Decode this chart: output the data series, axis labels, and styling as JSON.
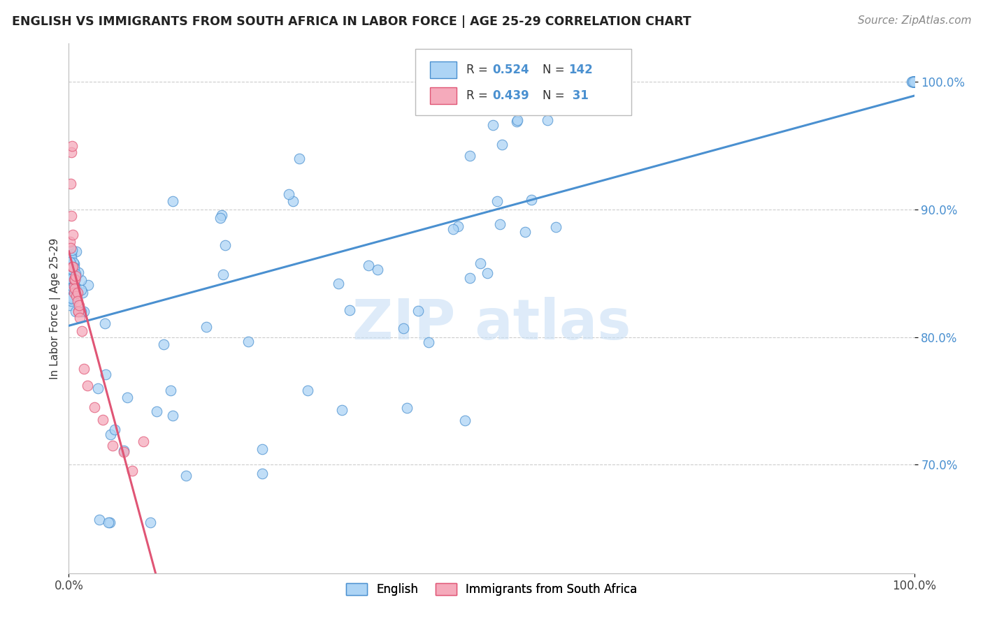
{
  "title": "ENGLISH VS IMMIGRANTS FROM SOUTH AFRICA IN LABOR FORCE | AGE 25-29 CORRELATION CHART",
  "source": "Source: ZipAtlas.com",
  "ylabel": "In Labor Force | Age 25-29",
  "xmin": 0.0,
  "xmax": 1.0,
  "ymin": 0.615,
  "ymax": 1.03,
  "yticks": [
    0.7,
    0.8,
    0.9,
    1.0
  ],
  "ytick_labels": [
    "70.0%",
    "80.0%",
    "90.0%",
    "100.0%"
  ],
  "xtick_labels": [
    "0.0%",
    "100.0%"
  ],
  "legend_r_english": "0.524",
  "legend_n_english": "142",
  "legend_r_immigrants": "0.439",
  "legend_n_immigrants": " 31",
  "english_color": "#add4f5",
  "immigrants_color": "#f5aabb",
  "line_english_color": "#4a90d0",
  "line_immigrants_color": "#e05575",
  "r_n_color": "#4a90d0",
  "watermark_color": "#c8dff5",
  "background_color": "#ffffff"
}
